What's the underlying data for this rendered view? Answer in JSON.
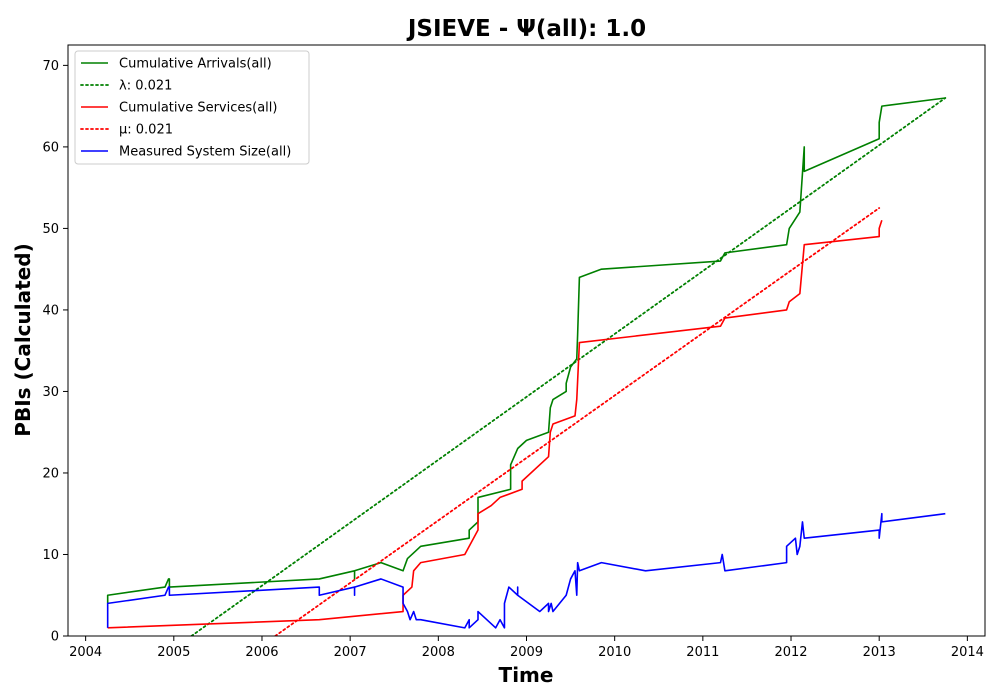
{
  "chart_data": {
    "type": "line",
    "title": "JSIEVE -  Ψ(all): 1.0",
    "xlabel": "Time",
    "ylabel": "PBIs (Calculated)",
    "xlim": [
      2003.8,
      2014.2
    ],
    "ylim": [
      0,
      72.5
    ],
    "xticks": [
      "2004",
      "2005",
      "2006",
      "2007",
      "2008",
      "2009",
      "2010",
      "2011",
      "2012",
      "2013",
      "2014"
    ],
    "yticks": [
      "0",
      "10",
      "20",
      "30",
      "40",
      "50",
      "60",
      "70"
    ],
    "grid": false,
    "legend_position": "top-left",
    "series": [
      {
        "name": "Cumulative Arrivals(all)",
        "style": "solid",
        "color": "#008000",
        "x": [
          2004.25,
          2004.25,
          2004.9,
          2004.94,
          2004.95,
          2004.95,
          2006.65,
          2007.05,
          2007.05,
          2007.05,
          2007.35,
          2007.6,
          2007.65,
          2007.75,
          2007.8,
          2008.35,
          2008.35,
          2008.45,
          2008.45,
          2008.82,
          2008.82,
          2008.86,
          2008.9,
          2009.0,
          2009.25,
          2009.27,
          2009.3,
          2009.45,
          2009.45,
          2009.5,
          2009.57,
          2009.58,
          2009.6,
          2009.85,
          2011.2,
          2011.25,
          2011.95,
          2011.98,
          2012.1,
          2012.15,
          2012.15,
          2013.0,
          2013.0,
          2013.03,
          2013.75
        ],
        "y": [
          4,
          5,
          6,
          7,
          7,
          6,
          7,
          8,
          7,
          8,
          9,
          8,
          9.5,
          10.5,
          11,
          12,
          13,
          14,
          17,
          18,
          21,
          22,
          23,
          24,
          25,
          28,
          29,
          30,
          31,
          33,
          34,
          37,
          44,
          45,
          46,
          47,
          48,
          50,
          52,
          60,
          57,
          61,
          63,
          65,
          66
        ]
      },
      {
        "name": "λ: 0.021",
        "style": "dotted",
        "color": "#008000",
        "x": [
          2005.2,
          2013.75
        ],
        "y": [
          0,
          66
        ]
      },
      {
        "name": "Cumulative Services(all)",
        "style": "solid",
        "color": "#ff0000",
        "x": [
          2004.25,
          2006.65,
          2007.6,
          2007.6,
          2007.7,
          2007.72,
          2007.8,
          2008.3,
          2008.45,
          2008.45,
          2008.6,
          2008.7,
          2008.95,
          2008.95,
          2009.25,
          2009.27,
          2009.3,
          2009.55,
          2009.57,
          2009.6,
          2011.2,
          2011.25,
          2011.95,
          2011.98,
          2012.1,
          2012.15,
          2013.0,
          2013.0,
          2013.03
        ],
        "y": [
          1,
          2,
          3,
          5,
          6,
          8,
          9,
          10,
          13,
          15,
          16,
          17,
          18,
          19,
          22,
          25,
          26,
          27,
          29,
          36,
          38,
          39,
          40,
          41,
          42,
          48,
          49,
          50,
          51
        ]
      },
      {
        "name": "μ: 0.021",
        "style": "dotted",
        "color": "#ff0000",
        "x": [
          2006.15,
          2013.0
        ],
        "y": [
          0,
          52.5
        ]
      },
      {
        "name": "Measured System Size(all)",
        "style": "solid",
        "color": "#0000ff",
        "x": [
          2004.25,
          2004.25,
          2004.9,
          2004.94,
          2004.95,
          2004.95,
          2006.65,
          2006.65,
          2007.05,
          2007.05,
          2007.05,
          2007.35,
          2007.6,
          2007.6,
          2007.65,
          2007.68,
          2007.72,
          2007.75,
          2007.8,
          2008.3,
          2008.35,
          2008.35,
          2008.45,
          2008.45,
          2008.65,
          2008.7,
          2008.75,
          2008.75,
          2008.8,
          2008.9,
          2008.9,
          2008.9,
          2009.15,
          2009.25,
          2009.25,
          2009.28,
          2009.3,
          2009.45,
          2009.5,
          2009.55,
          2009.57,
          2009.58,
          2009.6,
          2009.85,
          2010.35,
          2011.2,
          2011.22,
          2011.25,
          2011.95,
          2011.95,
          2012.05,
          2012.07,
          2012.1,
          2012.13,
          2012.15,
          2012.15,
          2013.0,
          2013.0,
          2013.03,
          2013.03,
          2013.75
        ],
        "y": [
          1,
          4,
          5,
          6,
          6,
          5,
          6,
          5,
          6,
          5,
          6,
          7,
          6,
          4,
          3,
          2,
          3,
          2,
          2,
          1,
          2,
          1,
          2,
          3,
          1,
          2,
          1,
          4,
          6,
          5,
          6,
          5,
          3,
          4,
          3,
          4,
          3,
          5,
          7,
          8,
          5,
          9,
          8,
          9,
          8,
          9,
          10,
          8,
          9,
          11,
          12,
          10,
          11,
          14,
          12,
          12,
          13,
          12,
          15,
          14,
          15
        ]
      }
    ]
  }
}
